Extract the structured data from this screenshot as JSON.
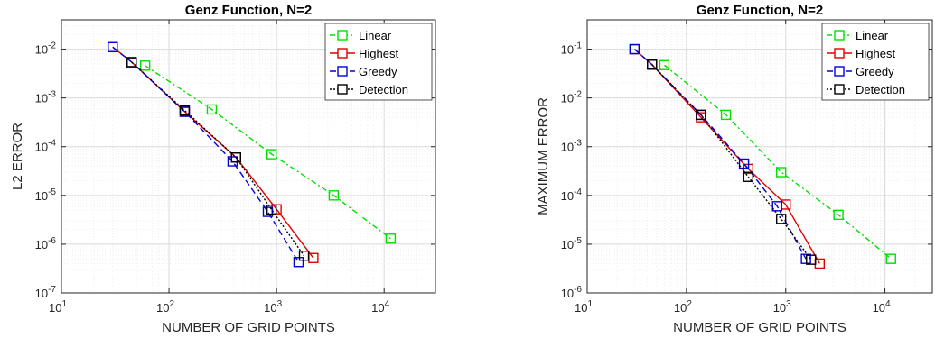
{
  "chart_data": [
    {
      "type": "line",
      "title": "Genz Function, N=2",
      "xlabel": "NUMBER OF GRID POINTS",
      "ylabel": "L2 ERROR",
      "xscale": "log",
      "yscale": "log",
      "xlim": [
        10,
        30000
      ],
      "ylim": [
        1e-07,
        0.04
      ],
      "x_ticks": [
        {
          "base": "10",
          "exp": "1"
        },
        {
          "base": "10",
          "exp": "2"
        },
        {
          "base": "10",
          "exp": "3"
        },
        {
          "base": "10",
          "exp": "4"
        }
      ],
      "y_ticks": [
        {
          "base": "10",
          "exp": "-7"
        },
        {
          "base": "10",
          "exp": "-6"
        },
        {
          "base": "10",
          "exp": "-5"
        },
        {
          "base": "10",
          "exp": "-4"
        },
        {
          "base": "10",
          "exp": "-3"
        },
        {
          "base": "10",
          "exp": "-2"
        }
      ],
      "grid": true,
      "legend_position": "top-right",
      "series": [
        {
          "name": "Linear",
          "color": "#00e000",
          "dash": "6,3,2,3",
          "x": [
            60,
            250,
            900,
            3400,
            11500
          ],
          "y": [
            0.0046,
            0.00058,
            7e-05,
            1e-05,
            1.3e-06
          ]
        },
        {
          "name": "Highest",
          "color": "#e00000",
          "dash": "",
          "x": [
            30,
            45,
            140,
            420,
            1000,
            2200
          ],
          "y": [
            0.011,
            0.0054,
            0.00052,
            6e-05,
            5.2e-06,
            5.2e-07
          ]
        },
        {
          "name": "Greedy",
          "color": "#0000dd",
          "dash": "7,4",
          "x": [
            30,
            45,
            140,
            390,
            830,
            1600
          ],
          "y": [
            0.011,
            0.0054,
            0.00052,
            5e-05,
            4.6e-06,
            4.3e-07
          ]
        },
        {
          "name": "Detection",
          "color": "#000000",
          "dash": "2,2",
          "x": [
            45,
            140,
            420,
            900,
            1800
          ],
          "y": [
            0.0054,
            0.00055,
            6e-05,
            5.1e-06,
            5.8e-07
          ]
        }
      ]
    },
    {
      "type": "line",
      "title": "Genz Function, N=2",
      "xlabel": "NUMBER OF GRID POINTS",
      "ylabel": "MAXIMUM ERROR",
      "xscale": "log",
      "yscale": "log",
      "xlim": [
        10,
        30000
      ],
      "ylim": [
        1e-06,
        0.4
      ],
      "x_ticks": [
        {
          "base": "10",
          "exp": "1"
        },
        {
          "base": "10",
          "exp": "2"
        },
        {
          "base": "10",
          "exp": "3"
        },
        {
          "base": "10",
          "exp": "4"
        }
      ],
      "y_ticks": [
        {
          "base": "10",
          "exp": "-6"
        },
        {
          "base": "10",
          "exp": "-5"
        },
        {
          "base": "10",
          "exp": "-4"
        },
        {
          "base": "10",
          "exp": "-3"
        },
        {
          "base": "10",
          "exp": "-2"
        },
        {
          "base": "10",
          "exp": "-1"
        }
      ],
      "grid": true,
      "legend_position": "top-right",
      "series": [
        {
          "name": "Linear",
          "color": "#00e000",
          "dash": "6,3,2,3",
          "x": [
            60,
            250,
            900,
            3400,
            11500
          ],
          "y": [
            0.047,
            0.0045,
            0.0003,
            4e-05,
            5e-06
          ]
        },
        {
          "name": "Highest",
          "color": "#e00000",
          "dash": "",
          "x": [
            30,
            45,
            140,
            420,
            1000,
            2200
          ],
          "y": [
            0.1,
            0.048,
            0.004,
            0.00035,
            6.5e-05,
            4e-06
          ]
        },
        {
          "name": "Greedy",
          "color": "#0000dd",
          "dash": "7,4",
          "x": [
            30,
            45,
            140,
            380,
            820,
            1600
          ],
          "y": [
            0.1,
            0.048,
            0.0045,
            0.00045,
            6e-05,
            5e-06
          ]
        },
        {
          "name": "Detection",
          "color": "#000000",
          "dash": "2,2",
          "x": [
            45,
            140,
            420,
            900,
            1800
          ],
          "y": [
            0.048,
            0.0045,
            0.00024,
            3.3e-05,
            4.8e-06
          ]
        }
      ]
    }
  ]
}
